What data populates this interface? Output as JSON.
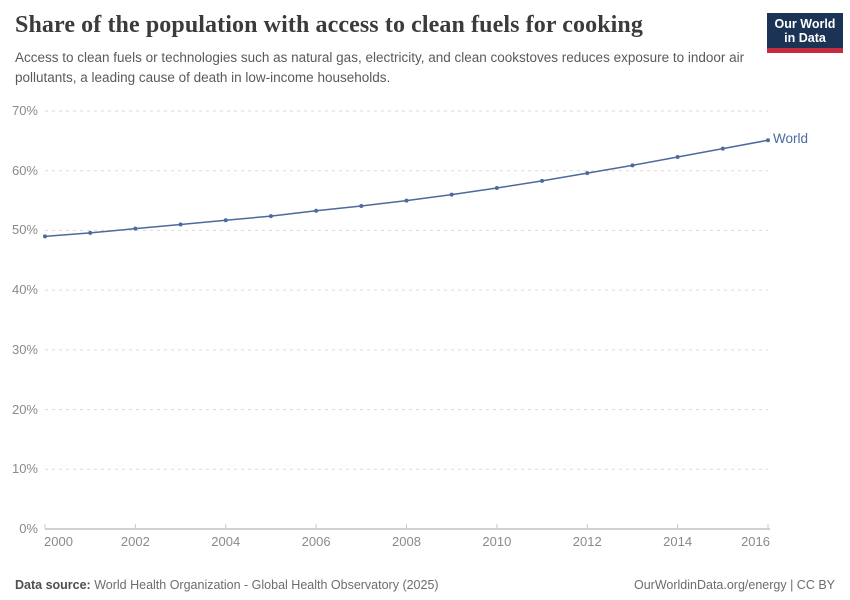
{
  "header": {
    "title": "Share of the population with access to clean fuels for cooking",
    "subtitle": "Access to clean fuels or technologies such as natural gas, electricity, and clean cookstoves reduces exposure to indoor air pollutants, a leading cause of death in low-income households.",
    "logo": {
      "line1": "Our World",
      "line2": "in Data"
    }
  },
  "chart_data": {
    "type": "line",
    "title": "Share of the population with access to clean fuels for cooking",
    "xlabel": "",
    "ylabel": "",
    "xlim": [
      2000,
      2016
    ],
    "ylim": [
      0,
      70
    ],
    "grid": "horizontal-dashed",
    "legend_position": "end-of-line-label",
    "x_ticks": [
      {
        "value": 2000,
        "label": "2000"
      },
      {
        "value": 2002,
        "label": "2002"
      },
      {
        "value": 2004,
        "label": "2004"
      },
      {
        "value": 2006,
        "label": "2006"
      },
      {
        "value": 2008,
        "label": "2008"
      },
      {
        "value": 2010,
        "label": "2010"
      },
      {
        "value": 2012,
        "label": "2012"
      },
      {
        "value": 2014,
        "label": "2014"
      },
      {
        "value": 2016,
        "label": "2016"
      }
    ],
    "y_ticks": [
      {
        "value": 0,
        "label": "0%"
      },
      {
        "value": 10,
        "label": "10%"
      },
      {
        "value": 20,
        "label": "20%"
      },
      {
        "value": 30,
        "label": "30%"
      },
      {
        "value": 40,
        "label": "40%"
      },
      {
        "value": 50,
        "label": "50%"
      },
      {
        "value": 60,
        "label": "60%"
      },
      {
        "value": 70,
        "label": "70%"
      }
    ],
    "series": [
      {
        "name": "World",
        "color": "#4C6A9C",
        "x": [
          2000,
          2001,
          2002,
          2003,
          2004,
          2005,
          2006,
          2007,
          2008,
          2009,
          2010,
          2011,
          2012,
          2013,
          2014,
          2015,
          2016
        ],
        "values": [
          49.0,
          49.6,
          50.3,
          51.0,
          51.7,
          52.4,
          53.3,
          54.1,
          55.0,
          56.0,
          57.1,
          58.3,
          59.6,
          60.9,
          62.3,
          63.7,
          65.1
        ]
      }
    ]
  },
  "footer": {
    "datasource_label": "Data source:",
    "datasource_text": " World Health Organization - Global Health Observatory (2025)",
    "right": "OurWorldinData.org/energy | CC BY"
  },
  "colors": {
    "line": "#4C6A9C",
    "gridline": "#dadada",
    "axis": "#a3a3a3",
    "tick": "#c9c9c9",
    "axis_text": "#8a8a8a",
    "logo_bg": "#1b3455",
    "logo_red": "#c52a3e"
  }
}
